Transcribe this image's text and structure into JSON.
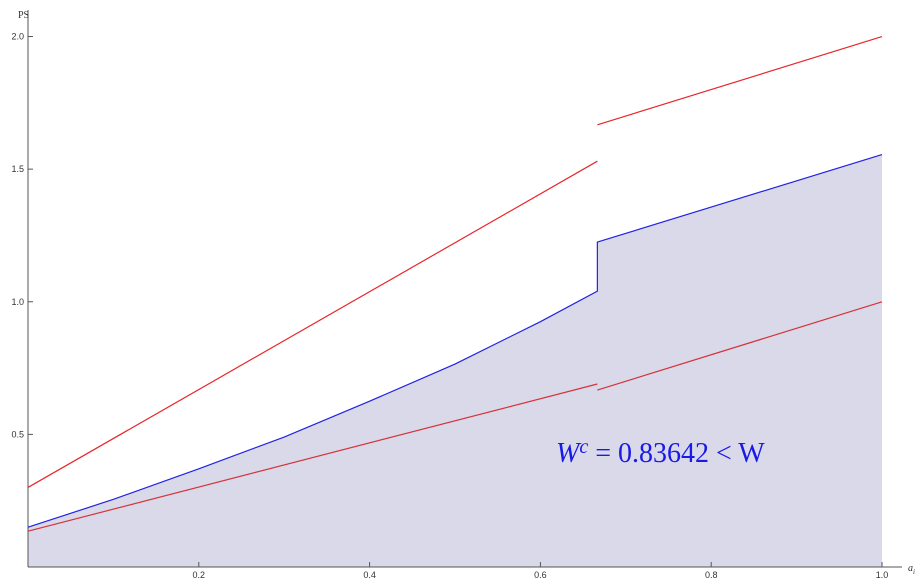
{
  "chart_data": {
    "type": "line",
    "y_label": "PS",
    "x_label": "a",
    "x_label_sub": "i",
    "xlim": [
      0,
      1
    ],
    "ylim": [
      0,
      2.1
    ],
    "xticks": [
      0.2,
      0.4,
      0.6,
      0.8,
      {
        "value": 1,
        "label": "1.0"
      }
    ],
    "yticks": [
      0.5,
      {
        "value": 1,
        "label": "1.0"
      },
      1.5,
      {
        "value": 2,
        "label": "2.0"
      }
    ],
    "series": [
      {
        "color": "#e8262b",
        "x": [
          0,
          0.6667,
          null,
          0.6667,
          1
        ],
        "values": [
          0.3,
          1.53,
          null,
          1.667,
          2.0
        ]
      },
      {
        "color": "#2323e0",
        "fill": "#d9d9ea",
        "x": [
          0,
          0.1,
          0.2,
          0.3,
          0.4,
          0.5,
          0.6,
          0.6667,
          0.6667,
          1
        ],
        "values": [
          0.15,
          0.255,
          0.37,
          0.49,
          0.625,
          0.765,
          0.925,
          1.04,
          1.225,
          1.555
        ]
      },
      {
        "color": "#d6333a",
        "x": [
          0,
          0.6667,
          null,
          0.6667,
          1
        ],
        "values": [
          0.135,
          0.69,
          null,
          0.667,
          1.0
        ]
      }
    ],
    "annotation": {
      "base": "W",
      "sup": "c",
      "rest": " = 0.83642 < W",
      "color": "#1a1ae6"
    }
  }
}
